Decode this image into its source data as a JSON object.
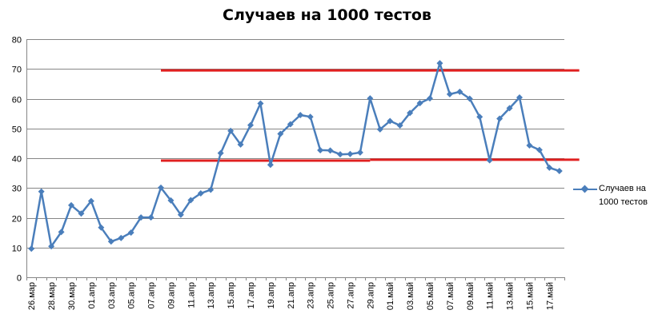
{
  "chart_data": {
    "type": "line",
    "title": "Случаев на 1000 тестов",
    "xlabel": "",
    "ylabel": "",
    "ylim": [
      0,
      80
    ],
    "yticks": [
      0,
      10,
      20,
      30,
      40,
      50,
      60,
      70,
      80
    ],
    "grid": "horizontal",
    "legend_position": "right",
    "colors": {
      "series": "#4a7ebb",
      "reference": "#e02020",
      "grid": "#868686"
    },
    "x_tick_labels": [
      "26.мар",
      "28.мар",
      "30.мар",
      "01.апр",
      "03.апр",
      "05.апр",
      "07.апр",
      "09.апр",
      "11.апр",
      "13.апр",
      "15.апр",
      "17.апр",
      "19.апр",
      "21.апр",
      "23.апр",
      "25.апр",
      "27.апр",
      "29.апр",
      "01.май",
      "03.май",
      "05.май",
      "07.май",
      "09.май",
      "11.май",
      "13.май",
      "15.май",
      "17.май"
    ],
    "series": [
      {
        "name": "Случаев на 1000 тестов",
        "values": [
          9.6,
          28.8,
          10.4,
          15.2,
          24.2,
          21.4,
          25.6,
          16.7,
          12.0,
          13.2,
          15.0,
          20.1,
          20.1,
          30.1,
          25.8,
          21.0,
          25.9,
          28.2,
          29.4,
          41.7,
          49.2,
          44.6,
          51.1,
          58.4,
          37.8,
          48.2,
          51.4,
          54.5,
          53.9,
          42.7,
          42.6,
          41.3,
          41.4,
          41.9,
          60.1,
          49.7,
          52.5,
          51.0,
          55.2,
          58.5,
          60.1,
          71.9,
          61.5,
          62.3,
          60.0,
          53.9,
          39.3,
          53.3,
          56.8,
          60.4,
          44.3,
          42.8,
          36.8,
          35.7
        ]
      }
    ],
    "reference_lines": [
      {
        "y": 69.5,
        "x_from": 13,
        "x_to": 55
      },
      {
        "y": 39.2,
        "x_from": 13,
        "x_to": 34
      },
      {
        "y": 39.5,
        "x_from": 34,
        "x_to": 55
      }
    ]
  }
}
